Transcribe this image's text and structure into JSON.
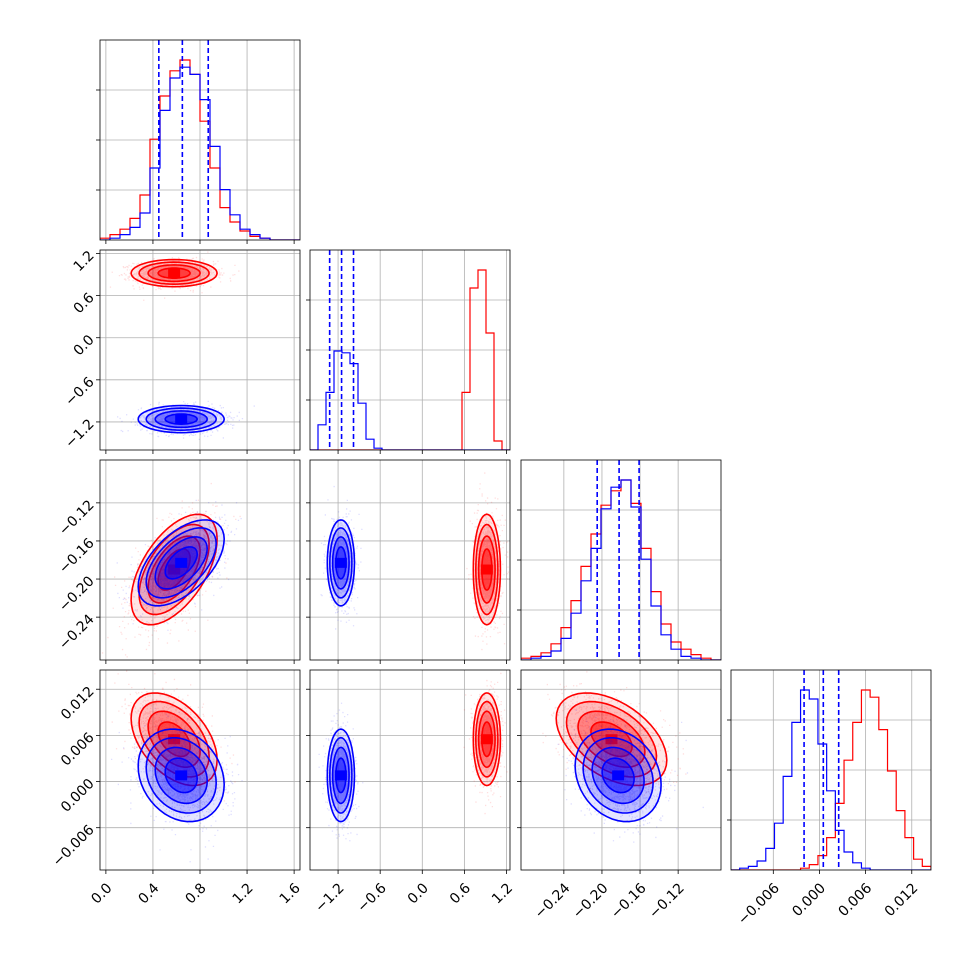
{
  "chart_data": {
    "type": "corner",
    "grid": true,
    "params": [
      {
        "lim": [
          -0.05,
          1.65
        ],
        "ticks": [
          "0.0",
          "0.4",
          "0.8",
          "1.2",
          "1.6"
        ],
        "tick_values": [
          0.0,
          0.4,
          0.8,
          1.2,
          1.6
        ],
        "quantiles": [
          0.45,
          0.65,
          0.87
        ]
      },
      {
        "lim": [
          -1.6,
          1.25
        ],
        "ticks": [
          "−1.2",
          "−0.6",
          "0.0",
          "0.6",
          "1.2"
        ],
        "tick_values": [
          -1.2,
          -0.6,
          0.0,
          0.6,
          1.2
        ],
        "quantiles": [
          -1.32,
          -1.15,
          -0.98
        ]
      },
      {
        "lim": [
          -0.285,
          -0.075
        ],
        "ticks": [
          "−0.24",
          "−0.20",
          "−0.16",
          "−0.12"
        ],
        "tick_values": [
          -0.24,
          -0.2,
          -0.16,
          -0.12
        ],
        "quantiles": [
          -0.205,
          -0.182,
          -0.161
        ]
      },
      {
        "lim": [
          -0.0115,
          0.0145
        ],
        "ticks": [
          "−0.006",
          "0.000",
          "0.006",
          "0.012"
        ],
        "tick_values": [
          -0.006,
          0.0,
          0.006,
          0.012
        ],
        "quantiles": [
          -0.002,
          0.0005,
          0.0025
        ]
      }
    ],
    "series": [
      {
        "color": "#ff0000",
        "means": [
          0.58,
          0.92,
          -0.19,
          0.0055
        ],
        "sds": [
          0.17,
          0.09,
          0.027,
          0.0028
        ],
        "corr": [
          [
            0,
            1,
            0.0
          ],
          [
            0,
            2,
            0.55
          ],
          [
            0,
            3,
            -0.45
          ],
          [
            1,
            2,
            0.0
          ],
          [
            1,
            3,
            0.0
          ],
          [
            2,
            3,
            -0.45
          ]
        ],
        "hist": [
          [
            1,
            3,
            6,
            12,
            25,
            56,
            80,
            94,
            100,
            92,
            66,
            40,
            18,
            10,
            5,
            2,
            1,
            0,
            0,
            0
          ],
          [
            0,
            0,
            0,
            0,
            0,
            0,
            0,
            0,
            0,
            0,
            0,
            0,
            0,
            0,
            0,
            0,
            0,
            0,
            0,
            32,
            90,
            100,
            65,
            5,
            0
          ],
          [
            1,
            2,
            4,
            9,
            18,
            33,
            52,
            70,
            86,
            94,
            100,
            87,
            62,
            38,
            20,
            10,
            6,
            3,
            1,
            0
          ],
          [
            0,
            0,
            0,
            0,
            0,
            0,
            0,
            0,
            1,
            3,
            8,
            18,
            37,
            61,
            82,
            100,
            96,
            78,
            55,
            33,
            18,
            6,
            2
          ]
        ]
      },
      {
        "color": "#0000ff",
        "means": [
          0.64,
          -1.16,
          -0.183,
          0.0008
        ],
        "sds": [
          0.17,
          0.09,
          0.021,
          0.0028
        ],
        "corr": [
          [
            0,
            1,
            0.0
          ],
          [
            0,
            2,
            0.55
          ],
          [
            0,
            3,
            -0.2
          ],
          [
            1,
            2,
            0.0
          ],
          [
            1,
            3,
            0.0
          ],
          [
            2,
            3,
            -0.2
          ]
        ],
        "hist": [
          [
            0,
            1,
            3,
            7,
            15,
            40,
            72,
            90,
            96,
            92,
            78,
            52,
            28,
            14,
            6,
            3,
            1,
            0,
            0,
            0
          ],
          [
            0,
            14,
            32,
            55,
            54,
            48,
            26,
            6,
            1,
            0,
            0,
            0,
            0,
            0,
            0,
            0,
            0,
            0,
            0,
            0,
            0,
            0,
            0,
            0,
            0
          ],
          [
            0,
            1,
            2,
            5,
            12,
            26,
            44,
            62,
            84,
            96,
            100,
            85,
            56,
            30,
            14,
            6,
            2,
            1,
            0,
            0
          ],
          [
            0,
            1,
            2,
            5,
            12,
            26,
            52,
            82,
            100,
            95,
            70,
            44,
            22,
            10,
            4,
            1,
            0,
            0,
            0,
            0,
            0,
            0,
            0
          ]
        ]
      }
    ]
  }
}
